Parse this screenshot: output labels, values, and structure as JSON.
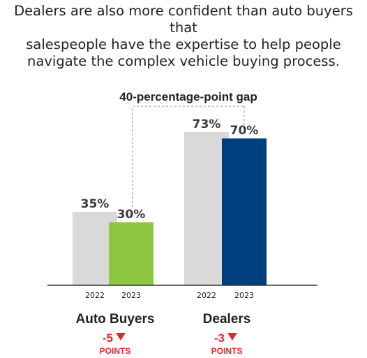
{
  "title_lines": [
    "Dealers are also more confident than auto buyers that",
    "salespeople have the expertise to help people",
    "navigate the complex vehicle buying process."
  ],
  "chart_data": {
    "type": "bar",
    "categories": [
      "2022",
      "2023",
      "2022",
      "2023"
    ],
    "groups": [
      {
        "name": "Auto Buyers",
        "bars": [
          {
            "year": "2022",
            "value": 35,
            "label": "35%",
            "color": "#d9d9d9"
          },
          {
            "year": "2023",
            "value": 30,
            "label": "30%",
            "color": "#8dc63f"
          }
        ],
        "change": "-5",
        "change_unit": "POINTS"
      },
      {
        "name": "Dealers",
        "bars": [
          {
            "year": "2022",
            "value": 73,
            "label": "73%",
            "color": "#d9d9d9"
          },
          {
            "year": "2023",
            "value": 70,
            "label": "70%",
            "color": "#003f7d"
          }
        ],
        "change": "-3",
        "change_unit": "POINTS"
      }
    ],
    "annotation": "40-percentage-point gap",
    "ylim": [
      0,
      100
    ],
    "colors": {
      "prior_year": "#d9d9d9",
      "auto_buyers_2023": "#8dc63f",
      "dealers_2023": "#003f7d",
      "change": "#e8262c",
      "text": "#222222",
      "value_label": "#3a3a3a"
    }
  }
}
